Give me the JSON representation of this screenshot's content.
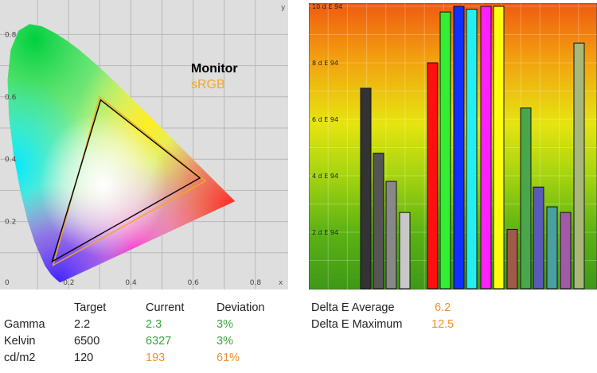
{
  "chart_data": [
    {
      "type": "scatter",
      "title": "",
      "x_axis": {
        "label": "x",
        "ticks": [
          "0",
          "0.2",
          "0.4",
          "0.6",
          "0.8"
        ],
        "range": [
          0,
          0.9
        ]
      },
      "y_axis": {
        "label": "y",
        "ticks": [
          "0",
          "0.2",
          "0.4",
          "0.6",
          "0.8"
        ],
        "range": [
          0,
          0.9
        ]
      },
      "grid": true,
      "legend": [
        {
          "name": "Monitor",
          "color": "#000000"
        },
        {
          "name": "sRGB",
          "color": "#f5a623"
        }
      ],
      "series": [
        {
          "name": "Monitor",
          "points": [
            [
              0.622,
              0.34
            ],
            [
              0.303,
              0.59
            ],
            [
              0.147,
              0.072
            ]
          ]
        },
        {
          "name": "sRGB",
          "points": [
            [
              0.64,
              0.33
            ],
            [
              0.3,
              0.6
            ],
            [
              0.15,
              0.06
            ]
          ]
        }
      ]
    },
    {
      "type": "bar",
      "title": "",
      "ylabel": "d E 94",
      "ylim": [
        0,
        10
      ],
      "y_ticks": [
        "2 d E 94",
        "4 d E 94",
        "6 d E 94",
        "8 d E 94",
        "10 d E 94"
      ],
      "grid": true,
      "bars": [
        {
          "value": 7.1,
          "color": "#333333"
        },
        {
          "value": 4.8,
          "color": "#555555"
        },
        {
          "value": 3.8,
          "color": "#888888"
        },
        {
          "value": 2.7,
          "color": "#c8c8c8"
        },
        {
          "value": 8.0,
          "color": "#ff1010"
        },
        {
          "value": 9.8,
          "color": "#33ee33"
        },
        {
          "value": 10.0,
          "color": "#1030ff"
        },
        {
          "value": 9.9,
          "color": "#22f0f0"
        },
        {
          "value": 10.0,
          "color": "#ff20ff"
        },
        {
          "value": 10.0,
          "color": "#ffff10"
        },
        {
          "value": 2.1,
          "color": "#a05a4a"
        },
        {
          "value": 6.4,
          "color": "#4aa64a"
        },
        {
          "value": 3.6,
          "color": "#5a5ab8"
        },
        {
          "value": 2.9,
          "color": "#4aa0a0"
        },
        {
          "value": 2.7,
          "color": "#a05aa8"
        },
        {
          "value": 8.7,
          "color": "#a8b878"
        }
      ]
    }
  ],
  "stats": {
    "headers": [
      "Target",
      "Current",
      "Deviation"
    ],
    "rows": [
      {
        "label": "Gamma",
        "target": "2.2",
        "current": "2.3",
        "deviation": "3%"
      },
      {
        "label": "Kelvin",
        "target": "6500",
        "current": "6327",
        "deviation": "3%"
      },
      {
        "label": "cd/m2",
        "target": "120",
        "current": "193",
        "deviation": "61%"
      }
    ]
  },
  "delta_e": {
    "average_label": "Delta E Average",
    "average_value": "6.2",
    "maximum_label": "Delta E Maximum",
    "maximum_value": "12.5"
  },
  "colors": {
    "good": "#3aa63a",
    "bad": "#f0902a",
    "monitor": "#000000",
    "srgb": "#f5a623"
  }
}
